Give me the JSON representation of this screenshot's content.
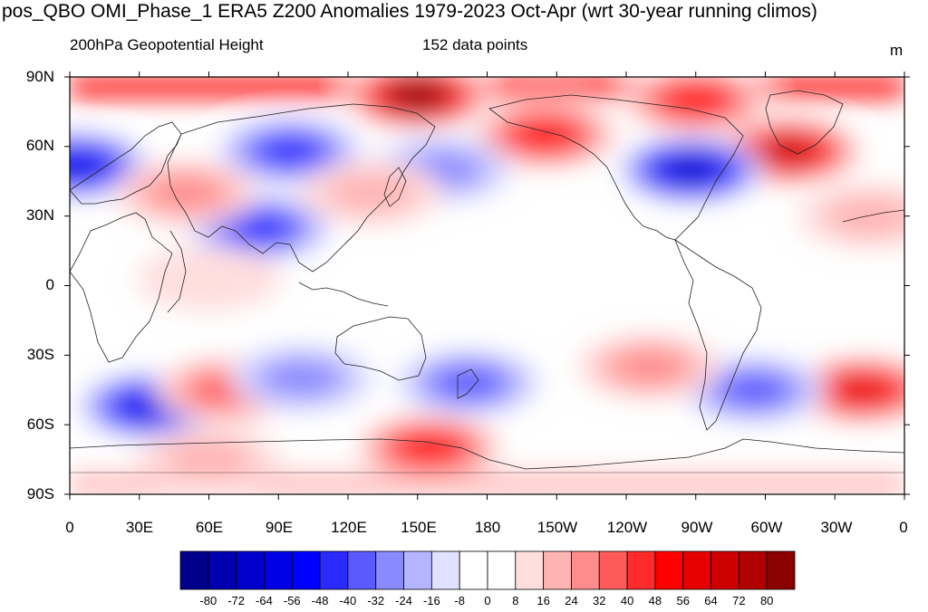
{
  "title": "pos_QBO OMI_Phase_1 ERA5 Z200 Anomalies 1979-2023 Oct-Apr (wrt 30-year running climos)",
  "subtitle_left": "200hPa Geopotential Height",
  "subtitle_center": "152 data points",
  "units": "m",
  "lat_labels": [
    "90N",
    "60N",
    "30N",
    "0",
    "30S",
    "60S",
    "90S"
  ],
  "lon_labels": [
    "0",
    "30E",
    "60E",
    "90E",
    "120E",
    "150E",
    "180",
    "150W",
    "120W",
    "90W",
    "60W",
    "30W",
    "0"
  ],
  "colorbar": {
    "labels": [
      "-80",
      "-72",
      "-64",
      "-56",
      "-48",
      "-40",
      "-32",
      "-24",
      "-16",
      "-8",
      "0",
      "8",
      "16",
      "24",
      "32",
      "40",
      "48",
      "56",
      "64",
      "72",
      "80"
    ],
    "colors": [
      "#00008b",
      "#0000b0",
      "#0000cd",
      "#0000e6",
      "#0000ff",
      "#2a2aff",
      "#5a5aff",
      "#8a8aff",
      "#b4b4ff",
      "#e0e0ff",
      "#ffffff",
      "#ffffff",
      "#ffdede",
      "#ffb4b4",
      "#ff8c8c",
      "#ff5a5a",
      "#ff2a2a",
      "#ff0000",
      "#e60000",
      "#cd0000",
      "#b00000",
      "#8b0000"
    ]
  },
  "anomaly_features": [
    {
      "lat": 82,
      "lon": 150,
      "value": 80
    },
    {
      "lat": 80,
      "lon": -90,
      "value": 48
    },
    {
      "lat": 58,
      "lon": -50,
      "value": 70
    },
    {
      "lat": 65,
      "lon": -155,
      "value": 48
    },
    {
      "lat": 50,
      "lon": -92,
      "value": -64
    },
    {
      "lat": 52,
      "lon": 3,
      "value": -56
    },
    {
      "lat": 58,
      "lon": 95,
      "value": -40
    },
    {
      "lat": 50,
      "lon": 160,
      "value": -24
    },
    {
      "lat": 25,
      "lon": 82,
      "value": -40
    },
    {
      "lat": 40,
      "lon": 50,
      "value": 24
    },
    {
      "lat": 40,
      "lon": 130,
      "value": 16
    },
    {
      "lat": -52,
      "lon": 35,
      "value": -56
    },
    {
      "lat": -45,
      "lon": 68,
      "value": 32
    },
    {
      "lat": -40,
      "lon": 100,
      "value": -24
    },
    {
      "lat": -42,
      "lon": 172,
      "value": -32
    },
    {
      "lat": -70,
      "lon": 155,
      "value": 48
    },
    {
      "lat": -45,
      "lon": -18,
      "value": 56
    },
    {
      "lat": -45,
      "lon": -65,
      "value": -32
    },
    {
      "lat": -35,
      "lon": -110,
      "value": 24
    },
    {
      "lat": 30,
      "lon": -15,
      "value": 16
    },
    {
      "lat": 3,
      "lon": 60,
      "value": 8
    },
    {
      "lat": -75,
      "lon": 60,
      "value": 16
    }
  ]
}
